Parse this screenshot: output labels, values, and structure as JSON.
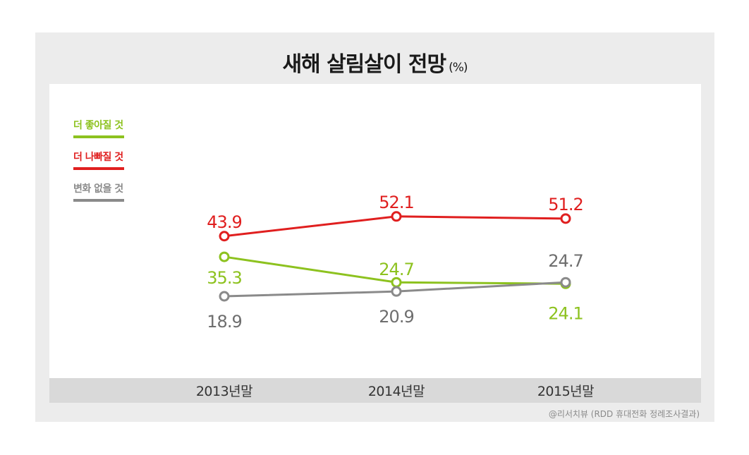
{
  "title": "새해 살림살이 전망",
  "title_unit": "(%)",
  "source": "@리서치뷰 (RDD 휴대전화 정례조사결과)",
  "colors": {
    "better": "#8dc21f",
    "worse": "#e01f1f",
    "nochange": "#8a8a8a"
  },
  "chart_data": {
    "type": "line",
    "title": "새해 살림살이 전망",
    "categories": [
      "2013년말",
      "2014년말",
      "2015년말"
    ],
    "legend_position": "left",
    "grid": false,
    "ylim": [
      0,
      60
    ],
    "series": [
      {
        "name": "더 좋아질 것",
        "color": "#8dc21f",
        "values": [
          35.3,
          24.7,
          24.1
        ],
        "labels": [
          "35.3",
          "24.7",
          "24.1"
        ]
      },
      {
        "name": "더 나빠질 것",
        "color": "#e01f1f",
        "values": [
          43.9,
          52.1,
          51.2
        ],
        "labels": [
          "43.9",
          "52.1",
          "51.2"
        ]
      },
      {
        "name": "변화 없을 것",
        "color": "#8a8a8a",
        "values": [
          18.9,
          20.9,
          24.7
        ],
        "labels": [
          "18.9",
          "20.9",
          "24.7"
        ]
      }
    ]
  }
}
